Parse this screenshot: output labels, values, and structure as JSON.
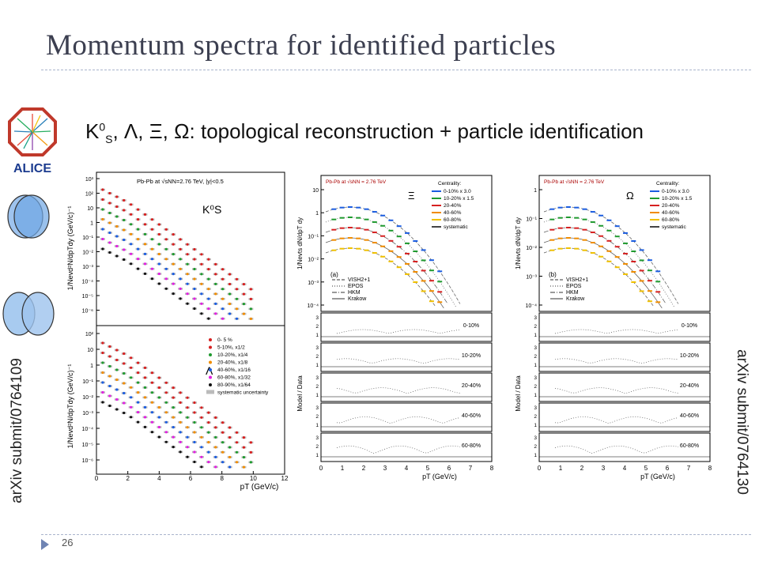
{
  "slide": {
    "title": "Momentum spectra for identified particles",
    "heading": "K⁰S, Λ, Ξ, Ω: topological reconstruction + particle identification",
    "left_vertical": "arXiv submit/0764109",
    "right_vertical": "arXiv submit/0764130",
    "page_number": "26",
    "logo_text": "ALICE"
  },
  "left_figure": {
    "top_panel": {
      "header": "Pb-Pb at √sNN=2.76 TeV, |y|<0.5",
      "particle": "K⁰S",
      "ylabel": "1/Nevd²N/dpTdy (GeV/c)⁻¹",
      "yticks": [
        "10³",
        "10²",
        "10",
        "1",
        "10⁻¹",
        "10⁻²",
        "10⁻³",
        "10⁻⁴",
        "10⁻⁵",
        "10⁻⁶"
      ]
    },
    "bottom_panel": {
      "particle": "Λ",
      "ylabel": "1/Nevd²N/dpTdy (GeV/c)⁻¹",
      "yticks": [
        "10²",
        "10",
        "1",
        "10⁻¹",
        "10⁻²",
        "10⁻³",
        "10⁻⁴",
        "10⁻⁵",
        "10⁻⁶"
      ],
      "legend": [
        "0- 5 %",
        "5-10%, x1/2",
        "10-20%, x1/4",
        "20-40%, x1/8",
        "40-60%, x1/16",
        "60-80%, x1/32",
        "80-90%, x1/64",
        "systematic uncertainty"
      ]
    },
    "xlabel": "pT (GeV/c)",
    "xticks": [
      "0",
      "2",
      "4",
      "6",
      "8",
      "10",
      "12"
    ]
  },
  "xi_figure": {
    "header": "Pb-Pb at √sNN = 2.76 TeV",
    "particle": "Ξ",
    "panel_label": "(a)",
    "legend_title": "Centrality:",
    "legend": [
      "0-10% x 3.0",
      "10-20% x 1.5",
      "20-40%",
      "40-60%",
      "60-80%",
      "systematic"
    ],
    "models": [
      "VISH2+1",
      "EPOS",
      "HKM",
      "Krakow"
    ],
    "ylabel": "1/Nevts dN/dpT dy",
    "yticks": [
      "10",
      "1",
      "10⁻¹",
      "10⁻²",
      "10⁻³",
      "10⁻⁴"
    ],
    "ratio_ylabel": "Model / Data",
    "ratio_labels": [
      "0-10%",
      "10-20%",
      "20-40%",
      "40-60%",
      "60-80%"
    ],
    "xlabel": "pT (GeV/c)",
    "xticks": [
      "0",
      "1",
      "2",
      "3",
      "4",
      "5",
      "6",
      "7",
      "8"
    ]
  },
  "omega_figure": {
    "header": "Pb-Pb at √sNN = 2.76 TeV",
    "particle": "Ω",
    "panel_label": "(b)",
    "legend_title": "Centrality:",
    "legend": [
      "0-10% x 3.0",
      "10-20% x 1.5",
      "20-40%",
      "40-60%",
      "60-80%",
      "systematic"
    ],
    "models": [
      "VISH2+1",
      "EPOS",
      "HKM",
      "Krakow"
    ],
    "ylabel": "1/Nevts dN/dpT dy",
    "yticks": [
      "1",
      "10⁻¹",
      "10⁻²",
      "10⁻³",
      "10⁻⁴"
    ],
    "ratio_ylabel": "Model / Data",
    "ratio_labels": [
      "0-10%",
      "10-20%",
      "20-40%",
      "40-60%",
      "60-80%"
    ],
    "xlabel": "pT (GeV/c)",
    "xticks": [
      "0",
      "1",
      "2",
      "3",
      "4",
      "5",
      "6",
      "7",
      "8"
    ]
  },
  "colors": {
    "series": [
      "#d62020",
      "#d62020",
      "#1f9a2f",
      "#f08c00",
      "#1b5de0",
      "#e020e0",
      "#111111"
    ],
    "title": "#3c3f50",
    "accent": "#6f84b3"
  }
}
